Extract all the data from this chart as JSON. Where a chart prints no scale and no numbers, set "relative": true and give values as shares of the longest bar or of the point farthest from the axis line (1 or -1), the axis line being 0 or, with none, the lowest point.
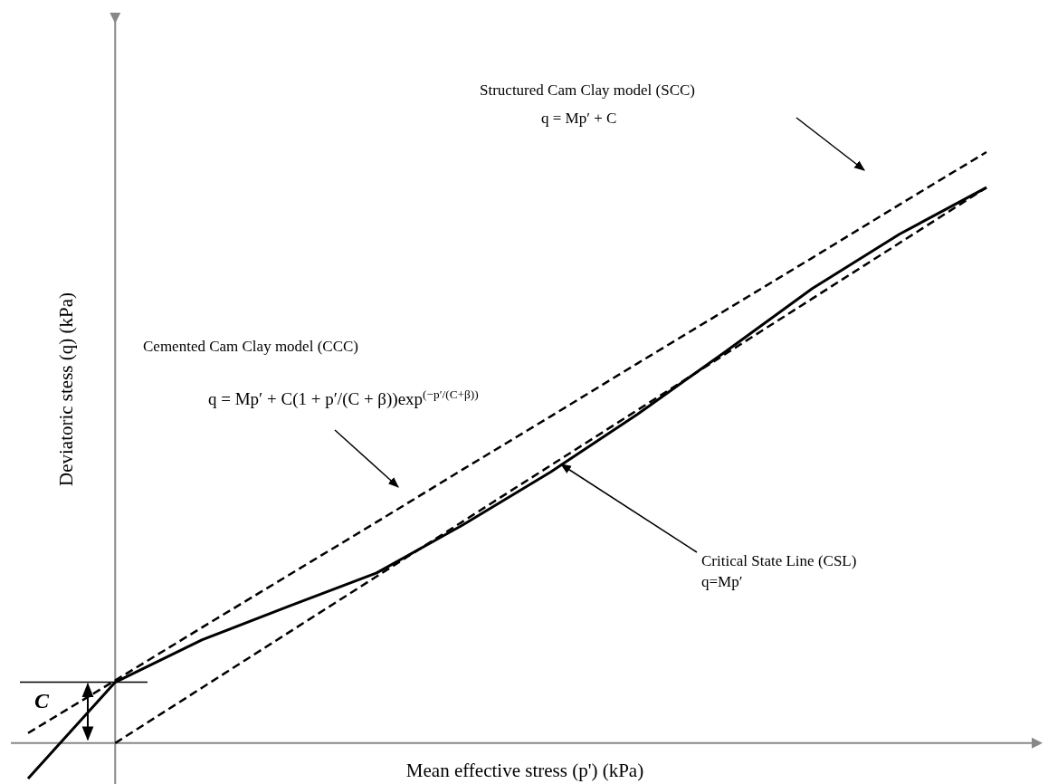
{
  "chart_data": {
    "type": "line",
    "relative": true,
    "xlabel": "Mean effective stress (p') (kPa)",
    "ylabel": "Deviatoric stess (q) (kPa)",
    "marker": "none",
    "annotations": [
      "Structured Cam Clay model (SCC)",
      "q = Mp′ + C",
      "Cemented Cam Clay model (CCC)",
      "q = Mp′ + C(1 + p′/(C + β))exp$^{(−p′/(C+β))}$",
      "Critical State Line (CSL)",
      "q=Mp′",
      "C"
    ],
    "categories": [
      null,
      null,
      null,
      null,
      null,
      null,
      null,
      null,
      null,
      null,
      null,
      null
    ],
    "series": [
      {
        "color": "#000000",
        "line_style": "dashed",
        "values": [
          0.017,
          0.106,
          0.196,
          0.285,
          0.374,
          0.464,
          0.553,
          0.643,
          0.732,
          0.821,
          0.911,
          1
        ]
      },
      {
        "color": "#000000",
        "line_style": "dashed",
        "values": [
          null,
          0,
          0.094,
          0.188,
          0.282,
          0.376,
          0.47,
          0.564,
          0.658,
          0.752,
          0.846,
          0.94
        ]
      },
      {
        "color": "#000000",
        "line_style": "solid",
        "values": [
          -0.06,
          0.103,
          0.175,
          0.232,
          0.288,
          0.37,
          0.459,
          0.557,
          0.662,
          0.769,
          0.861,
          0.94
        ]
      }
    ]
  }
}
